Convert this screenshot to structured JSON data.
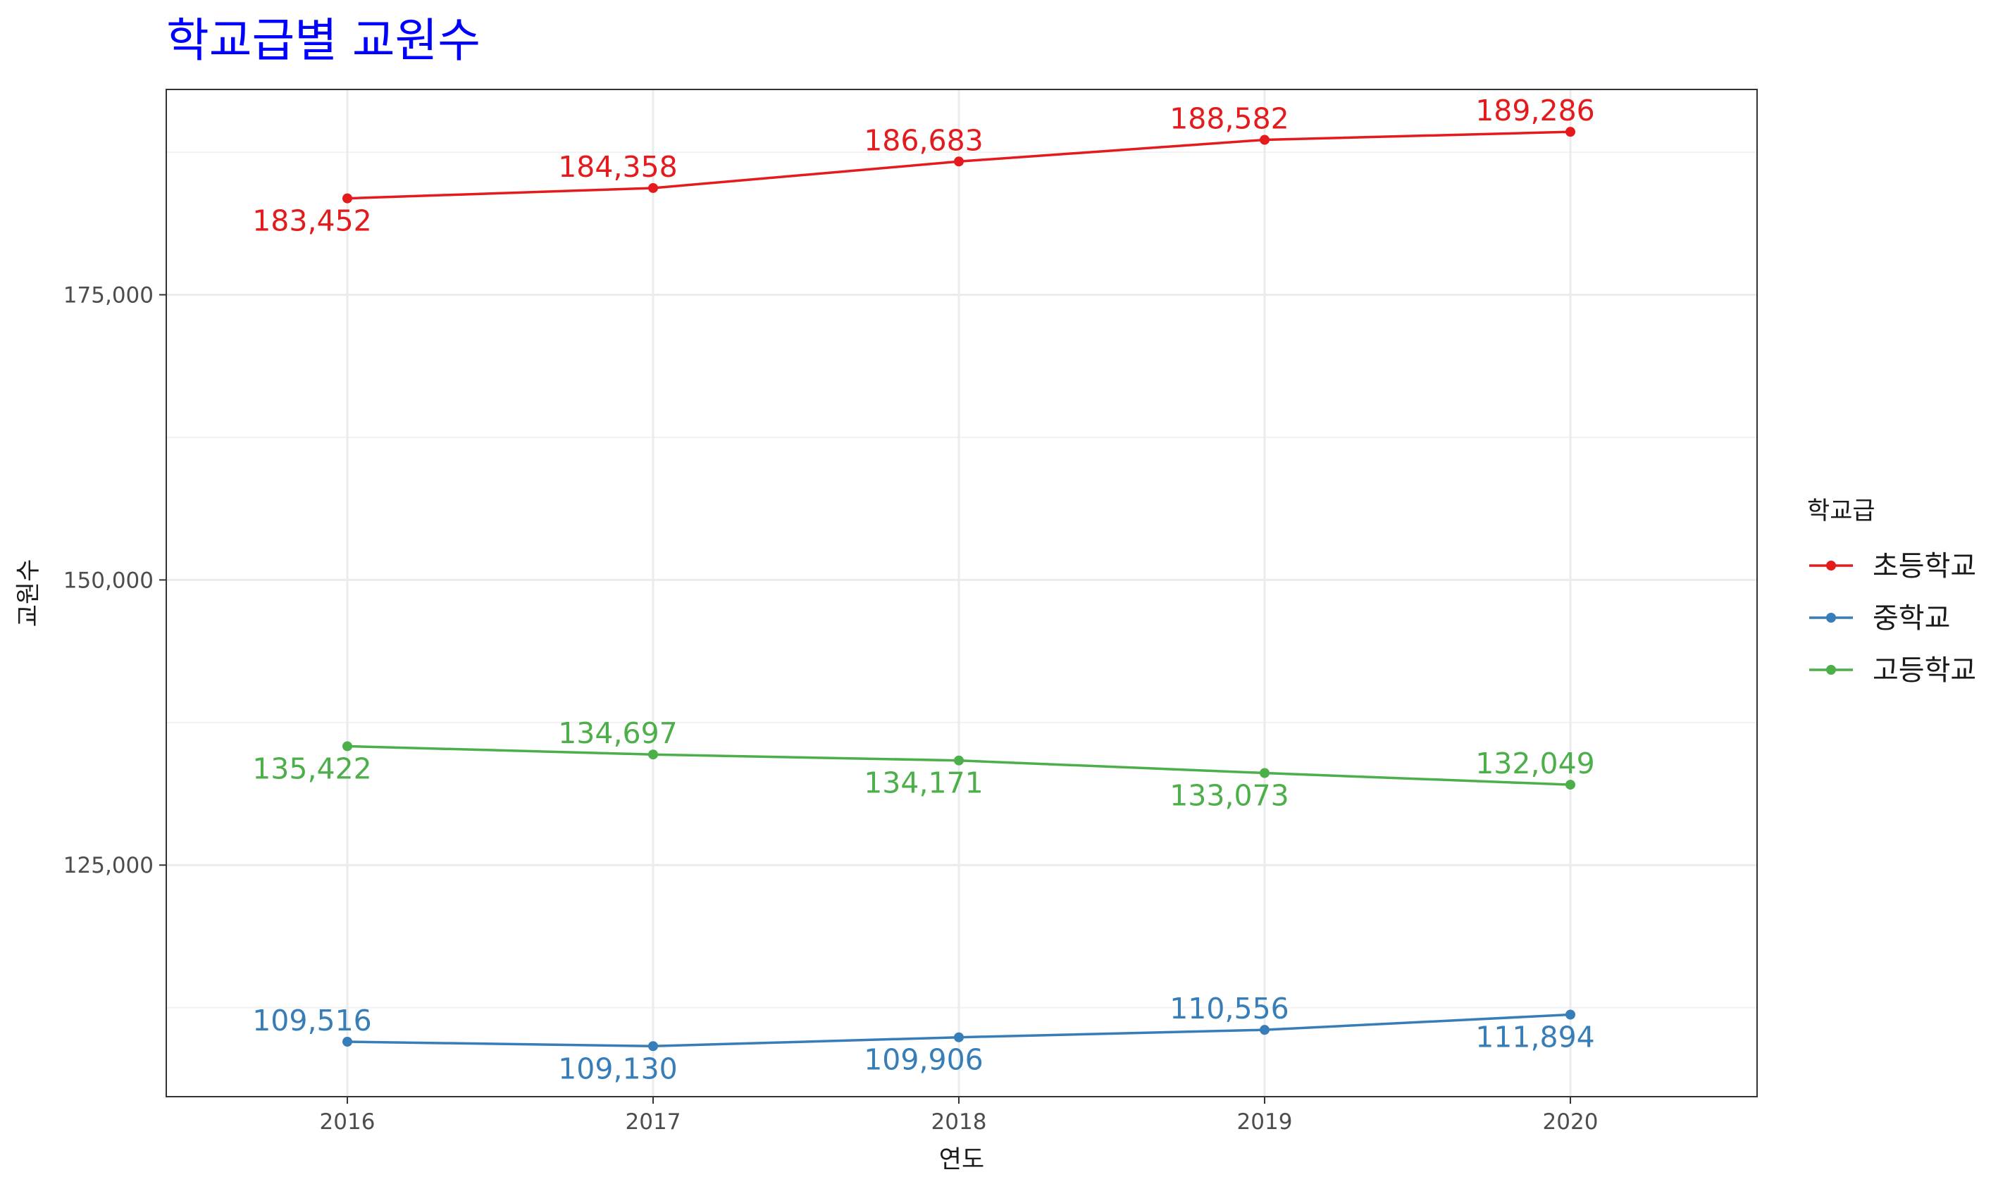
{
  "chart_data": {
    "type": "line",
    "title": "학교급별 교원수",
    "xlabel": "연도",
    "ylabel": "교원수",
    "x": [
      "2016",
      "2017",
      "2018",
      "2019",
      "2020"
    ],
    "ylim": [
      104700,
      193000
    ],
    "yticks": [
      125000,
      150000,
      175000
    ],
    "ytick_labels": [
      "125,000",
      "150,000",
      "175,000"
    ],
    "grid": true,
    "legend_title": "학교급",
    "legend_position": "right",
    "colors": {
      "title": "#0000ff"
    },
    "series": [
      {
        "name": "초등학교",
        "color": "#e41a1c",
        "values": [
          183452,
          184358,
          186683,
          188582,
          189286
        ],
        "labels": [
          "183,452",
          "184,358",
          "186,683",
          "188,582",
          "189,286"
        ],
        "label_pos": [
          "below",
          "above",
          "above",
          "above",
          "above"
        ]
      },
      {
        "name": "중학교",
        "color": "#377eb8",
        "values": [
          109516,
          109130,
          109906,
          110556,
          111894
        ],
        "labels": [
          "109,516",
          "109,130",
          "109,906",
          "110,556",
          "111,894"
        ],
        "label_pos": [
          "above",
          "below",
          "below",
          "above",
          "below"
        ]
      },
      {
        "name": "고등학교",
        "color": "#4daf4a",
        "values": [
          135422,
          134697,
          134171,
          133073,
          132049
        ],
        "labels": [
          "135,422",
          "134,697",
          "134,171",
          "133,073",
          "132,049"
        ],
        "label_pos": [
          "below",
          "above",
          "below",
          "below",
          "above"
        ]
      }
    ]
  }
}
